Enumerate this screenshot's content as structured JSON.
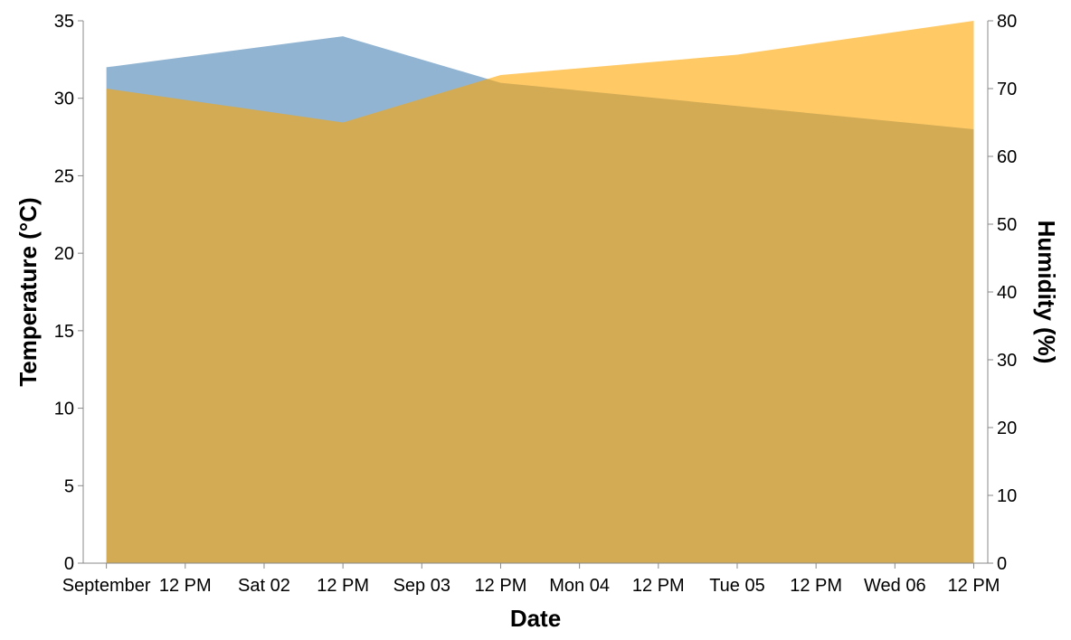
{
  "chart_data": {
    "type": "area",
    "xlabel": "Date",
    "ylabel_left": "Temperature (°C)",
    "ylabel_right": "Humidity (%)",
    "x": [
      "2023-09-01T00:00",
      "2023-09-02T12:00",
      "2023-09-03T12:00",
      "2023-09-06T12:00"
    ],
    "x_tick_labels": [
      "September",
      "12 PM",
      "Sat 02",
      "12 PM",
      "Sep 03",
      "12 PM",
      "Mon 04",
      "12 PM",
      "Tue 05",
      "12 PM",
      "Wed 06",
      "12 PM"
    ],
    "series": [
      {
        "name": "",
        "axis": "left",
        "color": "#4682b4",
        "opacity": 0.6,
        "x": [
          "2023-09-01T00:00",
          "2023-09-02T12:00",
          "2023-09-03T12:00",
          "2023-09-06T12:00"
        ],
        "values": [
          32,
          34,
          31,
          28
        ]
      },
      {
        "name": "",
        "axis": "right",
        "color": "#ffa500",
        "opacity": 0.6,
        "x": [
          "2023-09-01T00:00",
          "2023-09-02T12:00",
          "2023-09-03T12:00",
          "2023-09-05T00:00",
          "2023-09-06T12:00"
        ],
        "values": [
          70,
          65,
          72,
          75,
          80
        ]
      }
    ],
    "ylim_left": [
      0,
      35
    ],
    "yticks_left": [
      0,
      5,
      10,
      15,
      20,
      25,
      30,
      35
    ],
    "ylim_right": [
      0,
      80
    ],
    "yticks_right": [
      0,
      10,
      20,
      30,
      40,
      50,
      60,
      70,
      80
    ],
    "grid": false,
    "legend": "none"
  }
}
